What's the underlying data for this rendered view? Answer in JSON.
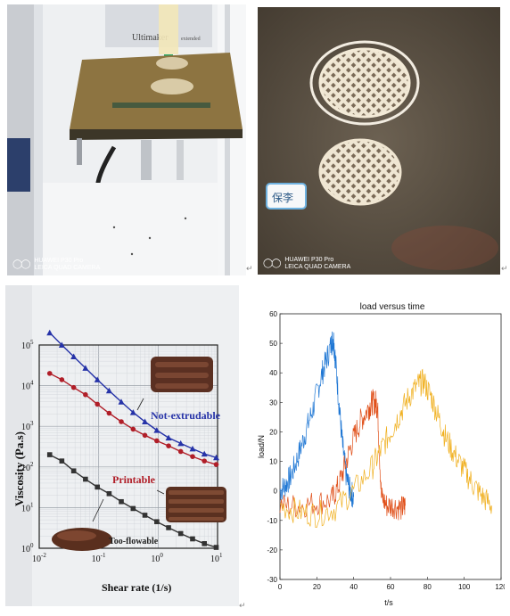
{
  "photo_printer": {
    "brand_text": "Ultimaker",
    "model_text": "extended",
    "watermark_line1": "HUAWEI P30 Pro",
    "watermark_line2": "LEICA QUAD CAMERA"
  },
  "photo_samples": {
    "label_sticker": "保李",
    "watermark_line1": "HUAWEI P30 Pro",
    "watermark_line2": "LEICA QUAD CAMERA"
  },
  "return_mark": "↵",
  "viscosity_chart": {
    "ylabel": "Viscosity (Pa.s)",
    "xlabel": "Shear rate (1/s)",
    "x_ticks": [
      {
        "base": "10",
        "exp": "-2"
      },
      {
        "base": "10",
        "exp": "-1"
      },
      {
        "base": "10",
        "exp": "0"
      },
      {
        "base": "10",
        "exp": "1"
      }
    ],
    "y_ticks": [
      {
        "base": "10",
        "exp": "0"
      },
      {
        "base": "10",
        "exp": "1"
      },
      {
        "base": "10",
        "exp": "2"
      },
      {
        "base": "10",
        "exp": "3"
      },
      {
        "base": "10",
        "exp": "4"
      },
      {
        "base": "10",
        "exp": "5"
      }
    ],
    "labels": {
      "not_extrudable": "Not-extrudable",
      "printable": "Printable",
      "too_flowable": "Too-flowable"
    },
    "colors": {
      "blue": "#2633a8",
      "red": "#b01e28",
      "black": "#333333"
    }
  },
  "chart_data": [
    {
      "type": "line",
      "scale": "log-log",
      "title": "",
      "xlabel": "Shear rate (1/s)",
      "ylabel": "Viscosity (Pa.s)",
      "xlim": [
        0.01,
        10
      ],
      "ylim": [
        1,
        100000
      ],
      "series": [
        {
          "name": "Not-extrudable",
          "color": "#2633a8",
          "x": [
            0.015,
            0.024,
            0.038,
            0.06,
            0.095,
            0.15,
            0.24,
            0.38,
            0.6,
            0.95,
            1.5,
            2.4,
            3.8,
            6,
            9.5
          ],
          "y": [
            200000,
            100000,
            52000,
            27000,
            14000,
            7500,
            4000,
            2200,
            1300,
            800,
            520,
            380,
            280,
            210,
            170
          ]
        },
        {
          "name": "Printable",
          "color": "#b01e28",
          "x": [
            0.015,
            0.024,
            0.038,
            0.06,
            0.095,
            0.15,
            0.24,
            0.38,
            0.6,
            0.95,
            1.5,
            2.4,
            3.8,
            6,
            9.5
          ],
          "y": [
            20000,
            14000,
            9000,
            6000,
            3500,
            2100,
            1300,
            850,
            600,
            440,
            330,
            240,
            180,
            140,
            115
          ]
        },
        {
          "name": "Too-flowable",
          "color": "#333333",
          "x": [
            0.015,
            0.024,
            0.038,
            0.06,
            0.095,
            0.15,
            0.24,
            0.38,
            0.6,
            0.95,
            1.5,
            2.4,
            3.8,
            6,
            9.5
          ],
          "y": [
            200,
            140,
            80,
            50,
            32,
            22,
            14,
            9.5,
            6.5,
            4.5,
            3.2,
            2.3,
            1.7,
            1.3,
            1.05
          ]
        }
      ]
    },
    {
      "type": "line",
      "title": "load versus time",
      "xlabel": "t/s",
      "ylabel": "load/N",
      "xlim": [
        0,
        120
      ],
      "ylim": [
        -30,
        60
      ],
      "x_ticks": [
        0,
        20,
        40,
        60,
        80,
        100,
        120
      ],
      "y_ticks": [
        -30,
        -20,
        -10,
        0,
        10,
        20,
        30,
        40,
        50,
        60
      ],
      "series": [
        {
          "color": "#1f77d4",
          "x": [
            0,
            3,
            6,
            10,
            14,
            18,
            22,
            25,
            28,
            29,
            30,
            32,
            34,
            36,
            38,
            40
          ],
          "y": [
            0,
            2,
            5,
            12,
            20,
            28,
            38,
            44,
            50,
            52,
            45,
            30,
            15,
            5,
            0,
            -2
          ]
        },
        {
          "color": "#e0501a",
          "x": [
            0,
            10,
            20,
            28,
            32,
            36,
            40,
            44,
            48,
            50,
            52,
            53,
            55,
            58,
            62,
            66,
            68
          ],
          "y": [
            -5,
            -5,
            -4,
            -3,
            2,
            10,
            18,
            24,
            28,
            30,
            30,
            28,
            -2,
            -5,
            -5,
            -6,
            -5
          ]
        },
        {
          "color": "#f0b020",
          "x": [
            0,
            10,
            20,
            30,
            40,
            50,
            55,
            60,
            65,
            70,
            75,
            78,
            82,
            86,
            90,
            95,
            100,
            105,
            110,
            115
          ],
          "y": [
            -5,
            -7,
            -8,
            -6,
            0,
            8,
            14,
            20,
            26,
            32,
            36,
            37,
            32,
            25,
            18,
            12,
            7,
            2,
            -2,
            -5
          ]
        }
      ]
    }
  ]
}
